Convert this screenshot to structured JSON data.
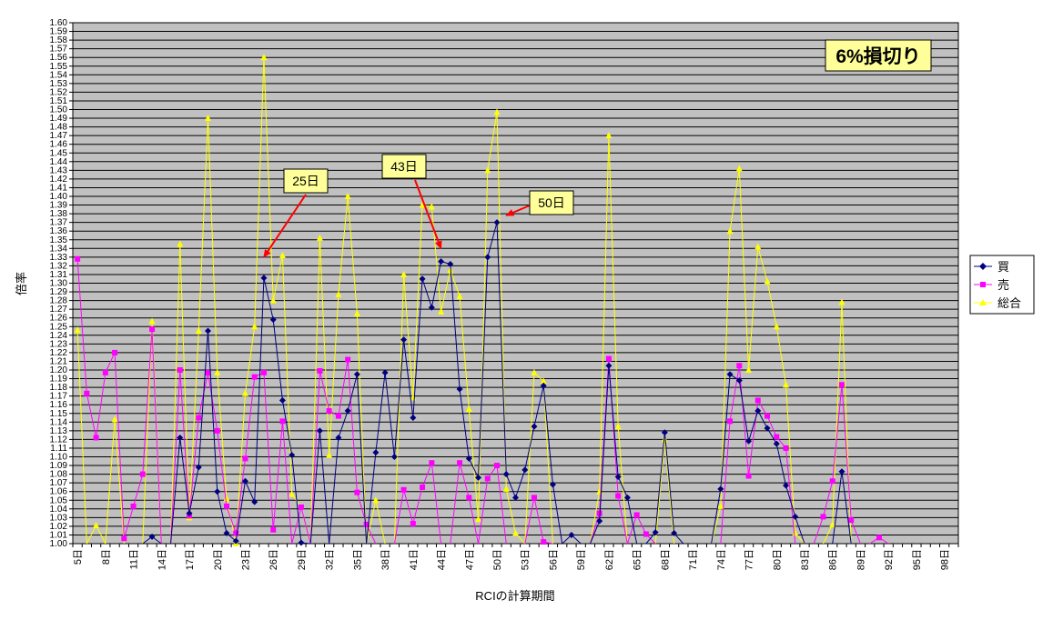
{
  "chart_data": {
    "type": "line",
    "title": "6%損切り",
    "xlabel": "RCIの計算期間",
    "ylabel": "倍率",
    "ylim": [
      1.0,
      1.6
    ],
    "grid": true,
    "legend": "right",
    "x": [
      "5日",
      "6日",
      "7日",
      "8日",
      "9日",
      "10日",
      "11日",
      "12日",
      "13日",
      "14日",
      "15日",
      "16日",
      "17日",
      "18日",
      "19日",
      "20日",
      "21日",
      "22日",
      "23日",
      "24日",
      "25日",
      "26日",
      "27日",
      "28日",
      "29日",
      "30日",
      "31日",
      "32日",
      "33日",
      "34日",
      "35日",
      "36日",
      "37日",
      "38日",
      "39日",
      "40日",
      "41日",
      "42日",
      "43日",
      "44日",
      "45日",
      "46日",
      "47日",
      "48日",
      "49日",
      "50日",
      "51日",
      "52日",
      "53日",
      "54日",
      "55日",
      "56日",
      "57日",
      "58日",
      "59日",
      "60日",
      "61日",
      "62日",
      "63日",
      "64日",
      "65日",
      "66日",
      "67日",
      "68日",
      "69日",
      "70日",
      "71日",
      "72日",
      "73日",
      "74日",
      "75日",
      "76日",
      "77日",
      "78日",
      "79日",
      "80日",
      "81日",
      "82日",
      "83日",
      "84日",
      "85日",
      "86日",
      "87日",
      "88日",
      "89日",
      "90日",
      "91日",
      "92日",
      "93日",
      "94日",
      "95日",
      "96日",
      "97日",
      "98日",
      "99日"
    ],
    "xtick_labels": [
      "5日",
      "",
      "",
      "8日",
      "",
      "",
      "11日",
      "",
      "",
      "14日",
      "",
      "",
      "17日",
      "",
      "",
      "20日",
      "",
      "",
      "23日",
      "",
      "",
      "26日",
      "",
      "",
      "29日",
      "",
      "",
      "32日",
      "",
      "",
      "35日",
      "",
      "",
      "38日",
      "",
      "",
      "41日",
      "",
      "",
      "44日",
      "",
      "",
      "47日",
      "",
      "",
      "50日",
      "",
      "",
      "53日",
      "",
      "",
      "56日",
      "",
      "",
      "59日",
      "",
      "",
      "62日",
      "",
      "",
      "65日",
      "",
      "",
      "68日",
      "",
      "",
      "71日",
      "",
      "",
      "74日",
      "",
      "",
      "77日",
      "",
      "",
      "80日",
      "",
      "",
      "83日",
      "",
      "",
      "86日",
      "",
      "",
      "89日",
      "",
      "",
      "92日",
      "",
      "",
      "95日",
      "",
      "",
      "98日",
      ""
    ],
    "ytick_labels": [
      "1.00",
      "1.01",
      "1.02",
      "1.03",
      "1.04",
      "1.05",
      "1.06",
      "1.07",
      "1.08",
      "1.09",
      "1.10",
      "1.11",
      "1.12",
      "1.13",
      "1.14",
      "1.15",
      "1.16",
      "1.17",
      "1.18",
      "1.19",
      "1.20",
      "1.21",
      "1.22",
      "1.23",
      "1.24",
      "1.25",
      "1.26",
      "1.27",
      "1.28",
      "1.29",
      "1.30",
      "1.31",
      "1.32",
      "1.33",
      "1.34",
      "1.35",
      "1.36",
      "1.37",
      "1.38",
      "1.39",
      "1.40",
      "1.41",
      "1.42",
      "1.43",
      "1.44",
      "1.45",
      "1.46",
      "1.47",
      "1.48",
      "1.49",
      "1.50",
      "1.51",
      "1.52",
      "1.53",
      "1.54",
      "1.55",
      "1.56",
      "1.57",
      "1.58",
      "1.59",
      "1.60"
    ],
    "series": [
      {
        "name": "買",
        "color": "#000080",
        "marker": "diamond",
        "values": [
          null,
          null,
          null,
          null,
          null,
          null,
          null,
          null,
          1.008,
          null,
          null,
          1.122,
          1.035,
          1.088,
          1.245,
          1.06,
          1.012,
          1.003,
          1.072,
          1.048,
          1.306,
          1.258,
          1.165,
          1.102,
          1.001,
          null,
          1.13,
          null,
          1.122,
          1.153,
          1.195,
          null,
          1.105,
          1.197,
          1.1,
          1.235,
          1.145,
          1.305,
          1.272,
          1.325,
          1.322,
          1.178,
          1.098,
          1.076,
          1.33,
          1.37,
          1.08,
          1.053,
          1.085,
          1.135,
          1.182,
          1.068,
          null,
          1.01,
          null,
          null,
          1.026,
          1.205,
          1.077,
          1.053,
          null,
          null,
          1.013,
          1.128,
          1.012,
          null,
          null,
          null,
          null,
          1.063,
          1.195,
          1.188,
          1.118,
          1.153,
          1.133,
          1.115,
          1.067,
          1.031,
          null,
          null,
          null,
          null,
          1.083,
          null,
          null,
          null,
          null,
          null,
          null,
          null,
          null,
          null,
          null,
          null,
          null
        ]
      },
      {
        "name": "売",
        "color": "#ff00ff",
        "marker": "square",
        "values": [
          1.328,
          1.173,
          1.122,
          1.197,
          1.22,
          1.006,
          1.043,
          1.08,
          1.247,
          null,
          null,
          1.2,
          1.032,
          1.145,
          1.197,
          1.13,
          1.043,
          1.012,
          1.098,
          1.192,
          1.197,
          1.016,
          1.141,
          null,
          1.042,
          null,
          1.199,
          1.153,
          1.147,
          1.212,
          1.059,
          1.022,
          null,
          null,
          null,
          1.062,
          1.023,
          1.065,
          1.093,
          null,
          null,
          1.093,
          1.053,
          null,
          1.075,
          1.09,
          null,
          null,
          null,
          1.053,
          1.002,
          null,
          null,
          null,
          null,
          null,
          1.035,
          1.213,
          1.055,
          null,
          1.033,
          1.011,
          null,
          null,
          null,
          null,
          null,
          null,
          null,
          null,
          1.141,
          1.205,
          1.078,
          1.165,
          1.147,
          1.123,
          1.11,
          null,
          null,
          null,
          1.031,
          1.072,
          1.183,
          1.027,
          null,
          null,
          1.007,
          null,
          null,
          null,
          null,
          null,
          null,
          null,
          null
        ]
      },
      {
        "name": "総合",
        "color": "#ffff00",
        "marker": "triangle",
        "values": [
          1.246,
          null,
          1.021,
          null,
          1.143,
          null,
          null,
          null,
          1.256,
          null,
          null,
          1.345,
          1.03,
          1.245,
          1.49,
          1.197,
          1.052,
          1.0,
          1.173,
          1.25,
          1.56,
          1.28,
          1.332,
          1.057,
          1.042,
          null,
          1.352,
          1.102,
          1.287,
          1.4,
          1.265,
          null,
          1.05,
          null,
          null,
          1.31,
          1.168,
          1.39,
          1.388,
          1.267,
          1.315,
          1.285,
          1.155,
          1.028,
          1.43,
          1.497,
          1.063,
          1.012,
          null,
          1.197,
          1.187,
          null,
          null,
          null,
          null,
          null,
          1.06,
          1.47,
          1.135,
          null,
          null,
          null,
          null,
          1.12,
          null,
          null,
          null,
          null,
          null,
          1.043,
          1.36,
          1.432,
          1.2,
          1.342,
          1.302,
          1.25,
          1.183,
          1.012,
          null,
          null,
          null,
          1.022,
          1.278,
          null,
          null,
          null,
          null,
          null,
          null,
          null,
          null,
          null,
          null,
          null,
          null
        ]
      }
    ],
    "annotations": [
      {
        "text": "25日",
        "x": "25日",
        "y": 1.33
      },
      {
        "text": "43日",
        "x": "44日",
        "y": 1.34
      },
      {
        "text": "50日",
        "x": "51日",
        "y": 1.378
      }
    ]
  }
}
